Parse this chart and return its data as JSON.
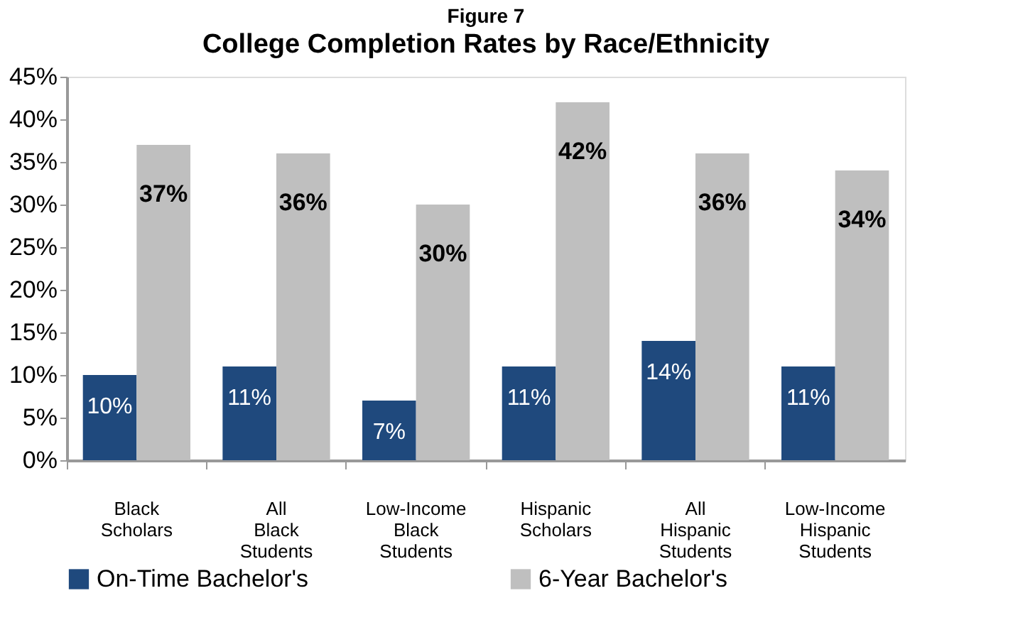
{
  "chart_data": {
    "type": "bar",
    "title": "Figure 7",
    "subtitle": "College Completion  Rates by Race/Ethnicity",
    "categories": [
      "Black Scholars",
      "All Black Students",
      "Low-Income Black Students",
      "Hispanic Scholars",
      "All Hispanic Students",
      "Low-Income Hispanic Students"
    ],
    "series": [
      {
        "name": "On-Time Bachelor's",
        "color": "#1f497d",
        "values": [
          10,
          11,
          7,
          11,
          14,
          11
        ],
        "value_labels": [
          "10%",
          "11%",
          "7%",
          "11%",
          "14%",
          "11%"
        ]
      },
      {
        "name": "6-Year Bachelor's",
        "color": "#bfbfbf",
        "values": [
          37,
          36,
          30,
          42,
          36,
          34
        ],
        "value_labels": [
          "37%",
          "36%",
          "30%",
          "42%",
          "36%",
          "34%"
        ]
      }
    ],
    "ylim": [
      0,
      45
    ],
    "yticks": [
      {
        "value": 0,
        "label": "0%"
      },
      {
        "value": 5,
        "label": "5%"
      },
      {
        "value": 10,
        "label": "10%"
      },
      {
        "value": 15,
        "label": "15%"
      },
      {
        "value": 20,
        "label": "20%"
      },
      {
        "value": 25,
        "label": "25%"
      },
      {
        "value": 30,
        "label": "30%"
      },
      {
        "value": 35,
        "label": "35%"
      },
      {
        "value": 40,
        "label": "40%"
      },
      {
        "value": 45,
        "label": "45%"
      }
    ],
    "grid": false,
    "legend": "bottom"
  }
}
